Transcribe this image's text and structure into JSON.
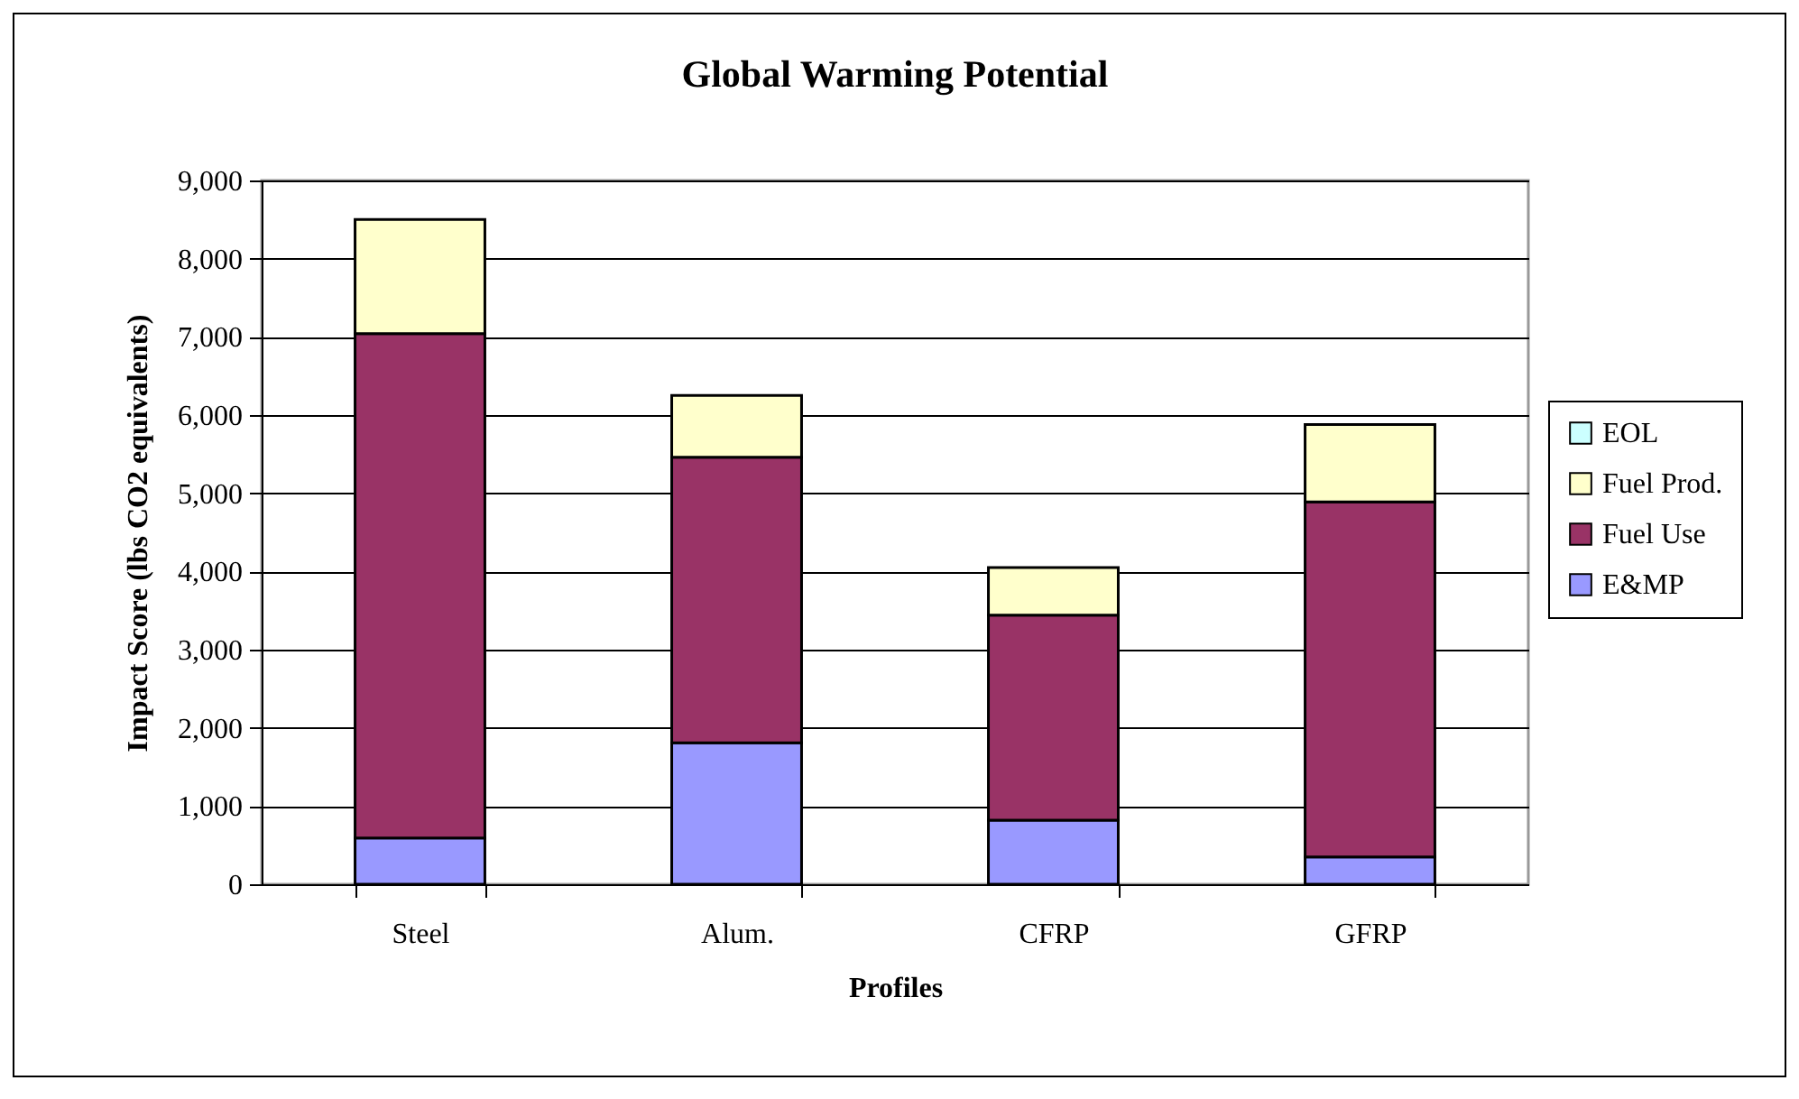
{
  "chart_data": {
    "type": "bar",
    "title": "Global Warming Potential",
    "xlabel": "Profiles",
    "ylabel": "Impact Score (lbs CO2 equivalents)",
    "categories": [
      "Steel",
      "Alum.",
      "CFRP",
      "GFRP"
    ],
    "stacked": true,
    "series": [
      {
        "name": "E&MP",
        "color": "#9999ff",
        "values": [
          590,
          1810,
          820,
          350
        ]
      },
      {
        "name": "Fuel Use",
        "color": "#993366",
        "values": [
          6450,
          3650,
          2620,
          4540
        ]
      },
      {
        "name": "Fuel Prod.",
        "color": "#ffffcc",
        "values": [
          1460,
          790,
          610,
          990
        ]
      },
      {
        "name": "EOL",
        "color": "#ccffff",
        "values": [
          0,
          0,
          0,
          0
        ]
      }
    ],
    "ylim": [
      0,
      9000
    ],
    "yticks": [
      0,
      {
        "value": 1000,
        "label": "1,000"
      },
      {
        "value": 2000,
        "label": "2,000"
      },
      {
        "value": 3000,
        "label": "3,000"
      },
      {
        "value": 4000,
        "label": "4,000"
      },
      {
        "value": 5000,
        "label": "5,000"
      },
      {
        "value": 6000,
        "label": "6,000"
      },
      {
        "value": 7000,
        "label": "7,000"
      },
      {
        "value": 8000,
        "label": "8,000"
      },
      {
        "value": 9000,
        "label": "9,000"
      }
    ],
    "grid": "y",
    "legend": "right"
  }
}
